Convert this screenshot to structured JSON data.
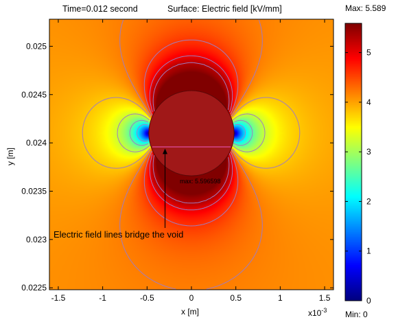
{
  "chart_data": {
    "type": "heatmap",
    "title": "Time=0.012 second",
    "subtitle": "Surface: Electric field  [kV/mm]",
    "xlabel": "x [m]",
    "ylabel": "y [m]",
    "x_exponent_label": "x10",
    "x_exponent_power": "-3",
    "xlim": [
      -1.6,
      1.6
    ],
    "ylim": [
      0.02248,
      0.02528
    ],
    "x_ticks": [
      -1.5,
      -1,
      -0.5,
      0,
      0.5,
      1,
      1.5
    ],
    "x_tick_labels": [
      "-1.5",
      "-1",
      "-0.5",
      "0",
      "0.5",
      "1",
      "1.5"
    ],
    "y_ticks": [
      0.0225,
      0.023,
      0.0235,
      0.024,
      0.0245,
      0.025
    ],
    "y_tick_labels": [
      "0.0225",
      "0.023",
      "0.0235",
      "0.024",
      "0.0245",
      "0.025"
    ],
    "void": {
      "center_x": 0.0,
      "center_y": 0.0241,
      "radius": 0.48,
      "color": "#a01818"
    },
    "field_far": 4.0,
    "colorbar": {
      "min": 0,
      "max": 5.589,
      "ticks": [
        0,
        1,
        2,
        3,
        4,
        5
      ],
      "tick_labels": [
        "0",
        "1",
        "2",
        "3",
        "4",
        "5"
      ],
      "max_label": "Max: 5.589",
      "min_label": "Min: 0"
    },
    "max_marker_label": "max: 5.596598",
    "annotation": "Electric field lines bridge the void",
    "contour_levels": [
      2.0,
      2.6,
      3.2,
      3.8,
      4.2,
      4.6,
      5.0,
      5.3
    ],
    "contour_color": "#a07cc0"
  }
}
